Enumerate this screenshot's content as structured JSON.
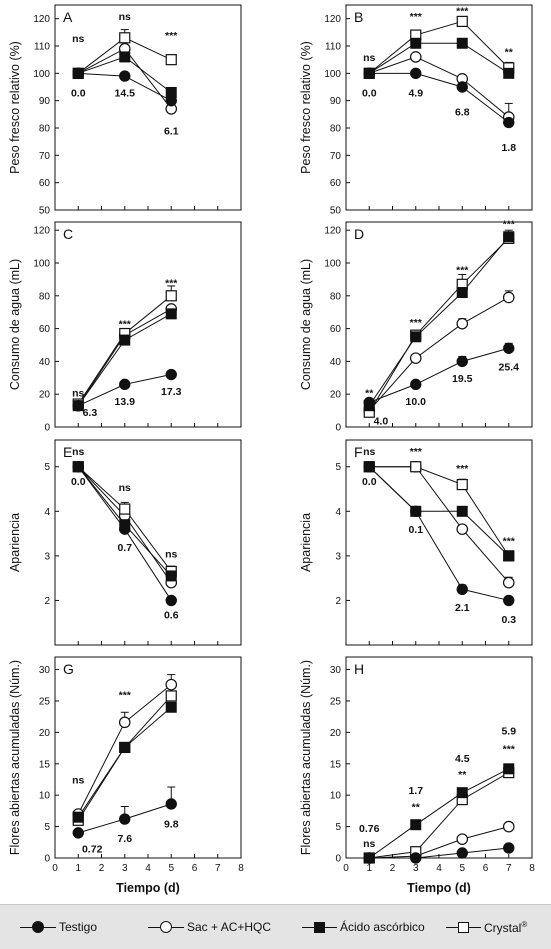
{
  "legend": {
    "testigo": "Testigo",
    "sac": "Sac + AC+HQC",
    "ascorbico": "Ácido ascórbico",
    "crystal": "Crystal",
    "crystal_sup": "®"
  },
  "colors": {
    "ink": "#111111",
    "legend_bg": "#e4e4e4"
  },
  "chart_data": [
    {
      "panel": "A",
      "type": "line",
      "ylabel": "Peso fresco relativo (%)",
      "xlabel": "",
      "xlim": [
        0,
        8
      ],
      "ylim": [
        50,
        125
      ],
      "xticks": [
        0,
        1,
        2,
        3,
        4,
        5,
        6,
        7,
        8
      ],
      "show_xtick_labels": false,
      "yticks": [
        50,
        60,
        70,
        80,
        90,
        100,
        110,
        120
      ],
      "x": [
        1,
        3,
        5
      ],
      "series": [
        {
          "name": "Testigo",
          "marker": "filled-circle",
          "values": [
            100,
            99,
            90
          ]
        },
        {
          "name": "Sac + AC+HQC",
          "marker": "open-circle",
          "values": [
            100,
            109,
            87
          ]
        },
        {
          "name": "Ácido ascórbico",
          "marker": "filled-square",
          "values": [
            100,
            106,
            93
          ]
        },
        {
          "name": "Crystal",
          "marker": "open-square",
          "values": [
            100,
            113,
            105
          ],
          "err": [
            0,
            3,
            0
          ]
        }
      ],
      "annotations": [
        {
          "x": 1,
          "y": 113,
          "text": "ns",
          "kind": "sig"
        },
        {
          "x": 3,
          "y": 121,
          "text": "ns",
          "kind": "sig"
        },
        {
          "x": 5,
          "y": 114,
          "text": "***",
          "kind": "sig"
        },
        {
          "x": 1,
          "y": 93,
          "text": "0.0",
          "kind": "val"
        },
        {
          "x": 3,
          "y": 93,
          "text": "14.5",
          "kind": "val"
        },
        {
          "x": 5,
          "y": 79,
          "text": "6.1",
          "kind": "val"
        }
      ]
    },
    {
      "panel": "B",
      "type": "line",
      "ylabel": "Peso fresco relativo (%)",
      "xlabel": "",
      "xlim": [
        0,
        8
      ],
      "ylim": [
        50,
        125
      ],
      "xticks": [
        0,
        1,
        2,
        3,
        4,
        5,
        6,
        7,
        8
      ],
      "show_xtick_labels": false,
      "yticks": [
        50,
        60,
        70,
        80,
        90,
        100,
        110,
        120
      ],
      "x": [
        1,
        3,
        5,
        7
      ],
      "series": [
        {
          "name": "Testigo",
          "marker": "filled-circle",
          "values": [
            100,
            100,
            95,
            82
          ]
        },
        {
          "name": "Sac + AC+HQC",
          "marker": "open-circle",
          "values": [
            100,
            106,
            98,
            84
          ],
          "err": [
            0,
            0,
            0,
            5
          ]
        },
        {
          "name": "Ácido ascórbico",
          "marker": "filled-square",
          "values": [
            100,
            111,
            111,
            100
          ]
        },
        {
          "name": "Crystal",
          "marker": "open-square",
          "values": [
            100,
            114,
            119,
            102
          ],
          "err": [
            0,
            0,
            0,
            2
          ]
        }
      ],
      "annotations": [
        {
          "x": 1,
          "y": 106,
          "text": "ns",
          "kind": "sig"
        },
        {
          "x": 3,
          "y": 121,
          "text": "***",
          "kind": "sig"
        },
        {
          "x": 5,
          "y": 123,
          "text": "***",
          "kind": "sig"
        },
        {
          "x": 7,
          "y": 108,
          "text": "**",
          "kind": "sig"
        },
        {
          "x": 1,
          "y": 93,
          "text": "0.0",
          "kind": "val"
        },
        {
          "x": 3,
          "y": 93,
          "text": "4.9",
          "kind": "val"
        },
        {
          "x": 5,
          "y": 86,
          "text": "6.8",
          "kind": "val"
        },
        {
          "x": 7,
          "y": 73,
          "text": "1.8",
          "kind": "val"
        }
      ]
    },
    {
      "panel": "C",
      "type": "line",
      "ylabel": "Consumo de agua (mL)",
      "xlabel": "",
      "xlim": [
        0,
        8
      ],
      "ylim": [
        0,
        125
      ],
      "xticks": [
        0,
        1,
        2,
        3,
        4,
        5,
        6,
        7,
        8
      ],
      "show_xtick_labels": false,
      "yticks": [
        0,
        20,
        40,
        60,
        80,
        100,
        120
      ],
      "x": [
        1,
        3,
        5
      ],
      "series": [
        {
          "name": "Testigo",
          "marker": "filled-circle",
          "values": [
            13,
            26,
            32
          ]
        },
        {
          "name": "Sac + AC+HQC",
          "marker": "open-circle",
          "values": [
            13,
            56,
            72
          ]
        },
        {
          "name": "Ácido ascórbico",
          "marker": "filled-square",
          "values": [
            13,
            53,
            69
          ]
        },
        {
          "name": "Crystal",
          "marker": "open-square",
          "values": [
            14,
            57,
            80
          ],
          "err": [
            2,
            3,
            6
          ]
        }
      ],
      "annotations": [
        {
          "x": 1,
          "y": 21,
          "text": "ns",
          "kind": "sig"
        },
        {
          "x": 3,
          "y": 63,
          "text": "***",
          "kind": "sig"
        },
        {
          "x": 5,
          "y": 88,
          "text": "***",
          "kind": "sig"
        },
        {
          "x": 1.5,
          "y": 9,
          "text": "6.3",
          "kind": "val"
        },
        {
          "x": 3,
          "y": 16,
          "text": "13.9",
          "kind": "val"
        },
        {
          "x": 5,
          "y": 22,
          "text": "17.3",
          "kind": "val"
        }
      ]
    },
    {
      "panel": "D",
      "type": "line",
      "ylabel": "Consumo de agua (mL)",
      "xlabel": "",
      "xlim": [
        0,
        8
      ],
      "ylim": [
        0,
        125
      ],
      "xticks": [
        0,
        1,
        2,
        3,
        4,
        5,
        6,
        7,
        8
      ],
      "show_xtick_labels": false,
      "yticks": [
        0,
        20,
        40,
        60,
        80,
        100,
        120
      ],
      "x": [
        1,
        3,
        5,
        7
      ],
      "series": [
        {
          "name": "Testigo",
          "marker": "filled-circle",
          "values": [
            15,
            26,
            40,
            48
          ],
          "err": [
            0,
            0,
            3,
            3
          ]
        },
        {
          "name": "Sac + AC+HQC",
          "marker": "open-circle",
          "values": [
            10,
            42,
            63,
            79
          ],
          "err": [
            0,
            0,
            3,
            4
          ]
        },
        {
          "name": "Ácido ascórbico",
          "marker": "filled-square",
          "values": [
            13,
            55,
            82,
            116
          ]
        },
        {
          "name": "Crystal",
          "marker": "open-square",
          "values": [
            9,
            56,
            87,
            115
          ],
          "err": [
            0,
            3,
            6,
            5
          ]
        }
      ],
      "annotations": [
        {
          "x": 1,
          "y": 21,
          "text": "**",
          "kind": "sig"
        },
        {
          "x": 3,
          "y": 64,
          "text": "***",
          "kind": "sig"
        },
        {
          "x": 5,
          "y": 96,
          "text": "***",
          "kind": "sig"
        },
        {
          "x": 7,
          "y": 124,
          "text": "***",
          "kind": "sig"
        },
        {
          "x": 1.5,
          "y": 4,
          "text": "4.0",
          "kind": "val"
        },
        {
          "x": 3,
          "y": 16,
          "text": "10.0",
          "kind": "val"
        },
        {
          "x": 5,
          "y": 30,
          "text": "19.5",
          "kind": "val"
        },
        {
          "x": 7,
          "y": 37,
          "text": "25.4",
          "kind": "val"
        }
      ]
    },
    {
      "panel": "E",
      "type": "line",
      "ylabel": "Apariencia",
      "xlabel": "",
      "xlim": [
        0,
        8
      ],
      "ylim": [
        1,
        5.6
      ],
      "xticks": [
        0,
        1,
        2,
        3,
        4,
        5,
        6,
        7,
        8
      ],
      "show_xtick_labels": false,
      "yticks": [
        2,
        3,
        4,
        5
      ],
      "x": [
        1,
        3,
        5
      ],
      "series": [
        {
          "name": "Testigo",
          "marker": "filled-circle",
          "values": [
            5,
            3.6,
            2
          ]
        },
        {
          "name": "Sac + AC+HQC",
          "marker": "open-circle",
          "values": [
            5,
            3.9,
            2.4
          ]
        },
        {
          "name": "Ácido ascórbico",
          "marker": "filled-square",
          "values": [
            5,
            3.7,
            2.55
          ]
        },
        {
          "name": "Crystal",
          "marker": "open-square",
          "values": [
            5,
            4.05,
            2.65
          ],
          "err": [
            0,
            0.15,
            0.12
          ]
        }
      ],
      "annotations": [
        {
          "x": 1,
          "y": 5.35,
          "text": "ns",
          "kind": "sig"
        },
        {
          "x": 3,
          "y": 4.55,
          "text": "ns",
          "kind": "sig"
        },
        {
          "x": 5,
          "y": 3.05,
          "text": "ns",
          "kind": "sig"
        },
        {
          "x": 1,
          "y": 4.68,
          "text": "0.0",
          "kind": "val"
        },
        {
          "x": 3,
          "y": 3.2,
          "text": "0.7",
          "kind": "val"
        },
        {
          "x": 5,
          "y": 1.68,
          "text": "0.6",
          "kind": "val"
        }
      ]
    },
    {
      "panel": "F",
      "type": "line",
      "ylabel": "Apariencia",
      "xlabel": "",
      "xlim": [
        0,
        8
      ],
      "ylim": [
        1,
        5.6
      ],
      "xticks": [
        0,
        1,
        2,
        3,
        4,
        5,
        6,
        7,
        8
      ],
      "show_xtick_labels": false,
      "yticks": [
        2,
        3,
        4,
        5
      ],
      "x": [
        1,
        3,
        5,
        7
      ],
      "series": [
        {
          "name": "Testigo",
          "marker": "filled-circle",
          "values": [
            5,
            4,
            2.25,
            2
          ],
          "err": [
            0,
            0,
            0.1,
            0
          ]
        },
        {
          "name": "Sac + AC+HQC",
          "marker": "open-circle",
          "values": [
            5,
            5,
            3.6,
            2.4
          ],
          "err": [
            0,
            0,
            0,
            0.12
          ]
        },
        {
          "name": "Ácido ascórbico",
          "marker": "filled-square",
          "values": [
            5,
            4,
            4,
            3
          ]
        },
        {
          "name": "Crystal",
          "marker": "open-square",
          "values": [
            5,
            5,
            4.6,
            3
          ],
          "err": [
            0,
            0,
            0.12,
            0
          ]
        }
      ],
      "annotations": [
        {
          "x": 1,
          "y": 5.35,
          "text": "ns",
          "kind": "sig"
        },
        {
          "x": 3,
          "y": 5.35,
          "text": "***",
          "kind": "sig"
        },
        {
          "x": 5,
          "y": 4.97,
          "text": "***",
          "kind": "sig"
        },
        {
          "x": 7,
          "y": 3.35,
          "text": "***",
          "kind": "sig"
        },
        {
          "x": 1,
          "y": 4.68,
          "text": "0.0",
          "kind": "val"
        },
        {
          "x": 3,
          "y": 3.6,
          "text": "0.1",
          "kind": "val"
        },
        {
          "x": 5,
          "y": 1.85,
          "text": "2.1",
          "kind": "val"
        },
        {
          "x": 7,
          "y": 1.58,
          "text": "0.3",
          "kind": "val"
        }
      ]
    },
    {
      "panel": "G",
      "type": "line",
      "ylabel": "Flores abiertas acumuladas (Núm.)",
      "xlabel": "Tiempo  (d)",
      "xlim": [
        0,
        8
      ],
      "ylim": [
        0,
        32
      ],
      "xticks": [
        0,
        1,
        2,
        3,
        4,
        5,
        6,
        7,
        8
      ],
      "show_xtick_labels": true,
      "yticks": [
        0,
        5,
        10,
        15,
        20,
        25,
        30
      ],
      "x": [
        1,
        3,
        5
      ],
      "series": [
        {
          "name": "Testigo",
          "marker": "filled-circle",
          "values": [
            4,
            6.2,
            8.6
          ],
          "err": [
            0,
            2,
            2.7
          ]
        },
        {
          "name": "Sac + AC+HQC",
          "marker": "open-circle",
          "values": [
            7,
            21.6,
            27.6
          ],
          "err": [
            0,
            1.6,
            1.6
          ]
        },
        {
          "name": "Ácido ascórbico",
          "marker": "filled-square",
          "values": [
            6.5,
            17.6,
            24
          ]
        },
        {
          "name": "Crystal",
          "marker": "open-square",
          "values": [
            6,
            17.6,
            25.8
          ]
        }
      ],
      "annotations": [
        {
          "x": 1,
          "y": 12.5,
          "text": "ns",
          "kind": "sig"
        },
        {
          "x": 3,
          "y": 26,
          "text": "***",
          "kind": "sig"
        },
        {
          "x": 1.6,
          "y": 1.5,
          "text": "0.72",
          "kind": "val"
        },
        {
          "x": 3,
          "y": 3.2,
          "text": "7.6",
          "kind": "val"
        },
        {
          "x": 5,
          "y": 5.5,
          "text": "9.8",
          "kind": "val"
        }
      ]
    },
    {
      "panel": "H",
      "type": "line",
      "ylabel": "Flores abiertas acumuladas (Núm.)",
      "xlabel": "Tiempo  (d)",
      "xlim": [
        0,
        8
      ],
      "ylim": [
        0,
        32
      ],
      "xticks": [
        0,
        1,
        2,
        3,
        4,
        5,
        6,
        7,
        8
      ],
      "show_xtick_labels": true,
      "yticks": [
        0,
        5,
        10,
        15,
        20,
        25,
        30
      ],
      "x": [
        1,
        3,
        5,
        7
      ],
      "series": [
        {
          "name": "Testigo",
          "marker": "filled-circle",
          "values": [
            0,
            0,
            0.8,
            1.6
          ]
        },
        {
          "name": "Sac + AC+HQC",
          "marker": "open-circle",
          "values": [
            0,
            0.3,
            3,
            5
          ]
        },
        {
          "name": "Ácido ascórbico",
          "marker": "filled-square",
          "values": [
            0,
            5.3,
            10.4,
            14.2
          ]
        },
        {
          "name": "Crystal",
          "marker": "open-square",
          "values": [
            0,
            1,
            9.3,
            13.6
          ],
          "err": [
            0,
            0,
            1.2,
            1
          ]
        }
      ],
      "annotations": [
        {
          "x": 1,
          "y": 4.8,
          "text": "0.76",
          "kind": "sig"
        },
        {
          "x": 1,
          "y": 2.4,
          "text": "ns",
          "kind": "sig"
        },
        {
          "x": 3,
          "y": 10.8,
          "text": "1.7",
          "kind": "sig"
        },
        {
          "x": 3,
          "y": 8.2,
          "text": "**",
          "kind": "sig"
        },
        {
          "x": 5,
          "y": 15.9,
          "text": "4.5",
          "kind": "sig"
        },
        {
          "x": 5,
          "y": 13.4,
          "text": "**",
          "kind": "sig"
        },
        {
          "x": 7,
          "y": 20.3,
          "text": "5.9",
          "kind": "sig"
        },
        {
          "x": 7,
          "y": 17.4,
          "text": "***",
          "kind": "sig"
        }
      ]
    }
  ]
}
